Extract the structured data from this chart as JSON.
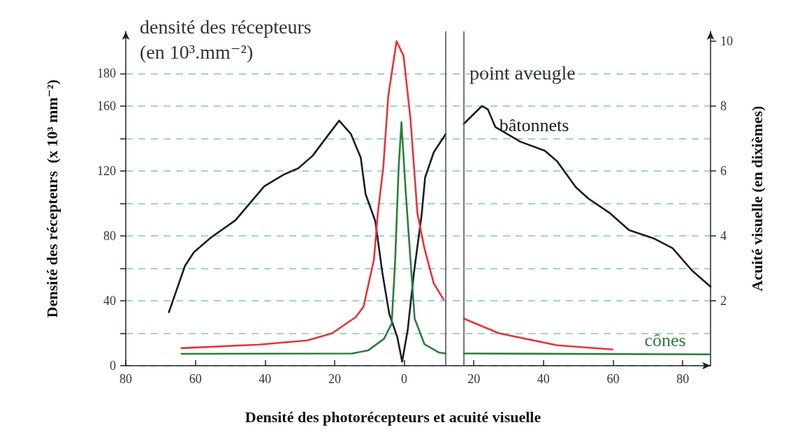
{
  "chart_data": {
    "type": "line",
    "title": "Densité des photorécepteurs et acuité visuelle",
    "ylabel": "Densité des récepteurs  (x 10³ mm⁻²)",
    "y2label": "Acuité visuelle (en dixièmes)",
    "annotations": [
      "densité des récepteurs\n(en 10³.mm⁻²)",
      "point aveugle"
    ],
    "xlim": [
      -80,
      88
    ],
    "xticks": [
      {
        "value": -80,
        "label": "80"
      },
      {
        "value": -60,
        "label": "60"
      },
      {
        "value": -40,
        "label": "40"
      },
      {
        "value": -20,
        "label": "20"
      },
      0,
      20,
      40,
      60,
      80
    ],
    "ylim": [
      0,
      206
    ],
    "yticks": [
      0,
      {
        "value": 20,
        "label": null
      },
      40,
      {
        "value": 60,
        "label": null
      },
      80,
      {
        "value": 100,
        "label": null
      },
      120,
      {
        "value": 140,
        "label": null
      },
      160,
      180
    ],
    "y2lim": [
      0,
      10.3
    ],
    "y2ticks": [
      2,
      4,
      6,
      8,
      10
    ],
    "grid": "y",
    "legend": false,
    "marker": "none",
    "line_style": "solid",
    "ref_lines": [
      {
        "axis": "x",
        "value": 11.9,
        "color": "#555555"
      },
      {
        "axis": "x",
        "value": 17.1,
        "color": "#555555"
      }
    ],
    "series": [
      {
        "name": "bâtonnets",
        "color": "#1c1c24",
        "x": [
          -67.6,
          -63,
          -60.4,
          -55.5,
          -48.5,
          -40.2,
          -34.6,
          -30.4,
          -26.3,
          -22.8,
          -18.7,
          -15.3,
          -12.5,
          -11.1,
          -8.3,
          -6.3,
          -4.3,
          -2,
          -0.6,
          1,
          2.8,
          5,
          6,
          8.5,
          11.9,
          14.5,
          17.1,
          22.3,
          24,
          26.2,
          33.4,
          40.4,
          43.9,
          49.3,
          52.9,
          59.1,
          64.6,
          71.6,
          77.1,
          82.7,
          88
        ],
        "values": [
          33,
          61.5,
          70,
          79,
          89.6,
          110.6,
          117.8,
          121.7,
          129.4,
          139.4,
          151,
          142.7,
          128.3,
          105.7,
          89,
          57.5,
          32,
          17.7,
          2.5,
          22,
          57.5,
          93,
          116,
          131.6,
          142.7,
          null,
          149,
          160,
          158,
          147,
          138,
          132.5,
          126,
          110,
          103,
          94,
          83.5,
          78.5,
          72.4,
          58.6,
          48.7
        ]
      },
      {
        "color": "#e8333a",
        "axis": "y2",
        "x": [
          -64,
          -41.6,
          -27.8,
          -20.7,
          -13.9,
          -11.7,
          -8.7,
          -7.6,
          -6,
          -4.6,
          -2.2,
          -0.2,
          1.8,
          3.8,
          5.8,
          8.5,
          11.3,
          14.5,
          17.1,
          27.2,
          43.9,
          59.8
        ],
        "values": [
          0.54,
          0.65,
          0.78,
          1.0,
          1.5,
          1.82,
          3.27,
          4.68,
          6.13,
          8.3,
          10,
          9.55,
          7.6,
          4.68,
          3.62,
          2.53,
          2.04,
          null,
          1.45,
          1.0,
          0.63,
          0.5
        ]
      },
      {
        "name": "cônes",
        "color": "#2e7d3a",
        "x": [
          -64,
          -15,
          -10.3,
          -5.8,
          -3.6,
          -2.6,
          -1.6,
          -0.8,
          0.4,
          1.8,
          3,
          5.8,
          9.9,
          11.9,
          14.5,
          17.1,
          88
        ],
        "values": [
          7.3,
          7.5,
          9.5,
          16.6,
          26,
          65,
          122,
          150,
          108,
          65,
          29,
          13.3,
          8.2,
          7.5,
          null,
          7.5,
          7
        ]
      }
    ]
  }
}
